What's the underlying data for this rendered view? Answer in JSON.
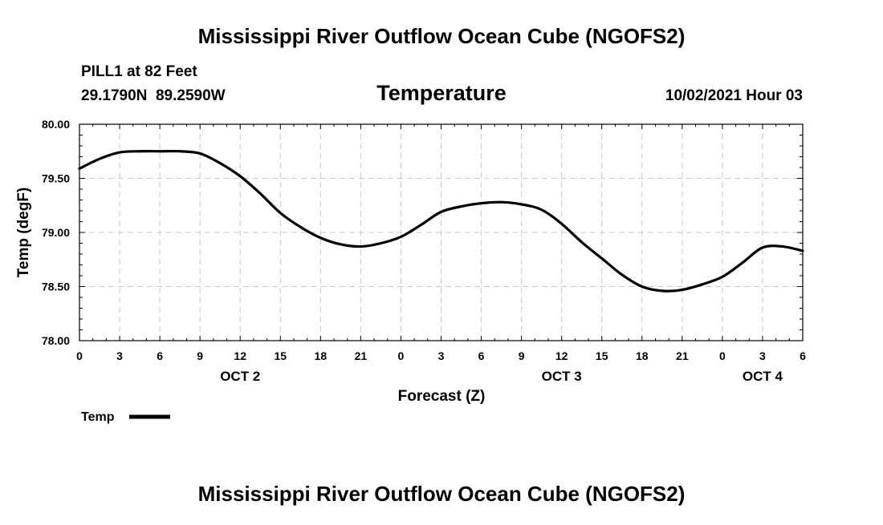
{
  "title": "Mississippi River Outflow Ocean Cube (NGOFS2)",
  "footer_title": "Mississippi River Outflow Ocean Cube (NGOFS2)",
  "station": {
    "name": "PILL1 at 82 Feet",
    "coords": "29.1790N  89.2590W"
  },
  "variable": "Temperature",
  "datetime": "10/02/2021 Hour 03",
  "legend": {
    "label": "Temp"
  },
  "colors": {
    "line": "#000000",
    "grid": "#c8c8c8",
    "background": "#ffffff"
  },
  "chart_data": {
    "type": "line",
    "title": "Temperature",
    "xlabel": "Forecast (Z)",
    "ylabel": "Temp (degF)",
    "ylim": [
      78.0,
      80.0
    ],
    "y_ticks": [
      "78.00",
      "78.50",
      "79.00",
      "79.50",
      "80.00"
    ],
    "x_ticks": [
      "0",
      "3",
      "6",
      "9",
      "12",
      "15",
      "18",
      "21",
      "0",
      "3",
      "6",
      "9",
      "12",
      "15",
      "18",
      "21",
      "0",
      "3",
      "6"
    ],
    "day_labels": [
      {
        "label": "OCT 2",
        "hour": 12
      },
      {
        "label": "OCT 3",
        "hour": 36
      },
      {
        "label": "OCT 4",
        "hour": 51
      }
    ],
    "grid": true,
    "legend_position": "bottom-left",
    "series": [
      {
        "name": "Temp",
        "x": [
          0,
          1.5,
          3,
          4.5,
          6,
          7.5,
          9,
          10.5,
          12,
          13.5,
          15,
          16.5,
          18,
          19.5,
          21,
          22.5,
          24,
          25.5,
          27,
          28.5,
          30,
          31.5,
          33,
          34.5,
          36,
          37.5,
          39,
          40.5,
          42,
          43.5,
          45,
          46.5,
          48,
          49.5,
          51,
          52.5,
          54
        ],
        "y": [
          79.59,
          79.68,
          79.74,
          79.75,
          79.75,
          79.75,
          79.73,
          79.64,
          79.52,
          79.36,
          79.18,
          79.05,
          78.95,
          78.89,
          78.87,
          78.9,
          78.96,
          79.07,
          79.19,
          79.24,
          79.27,
          79.28,
          79.26,
          79.21,
          79.08,
          78.91,
          78.76,
          78.61,
          78.5,
          78.46,
          78.47,
          78.52,
          78.59,
          78.72,
          78.86,
          78.87,
          78.83
        ]
      }
    ]
  }
}
